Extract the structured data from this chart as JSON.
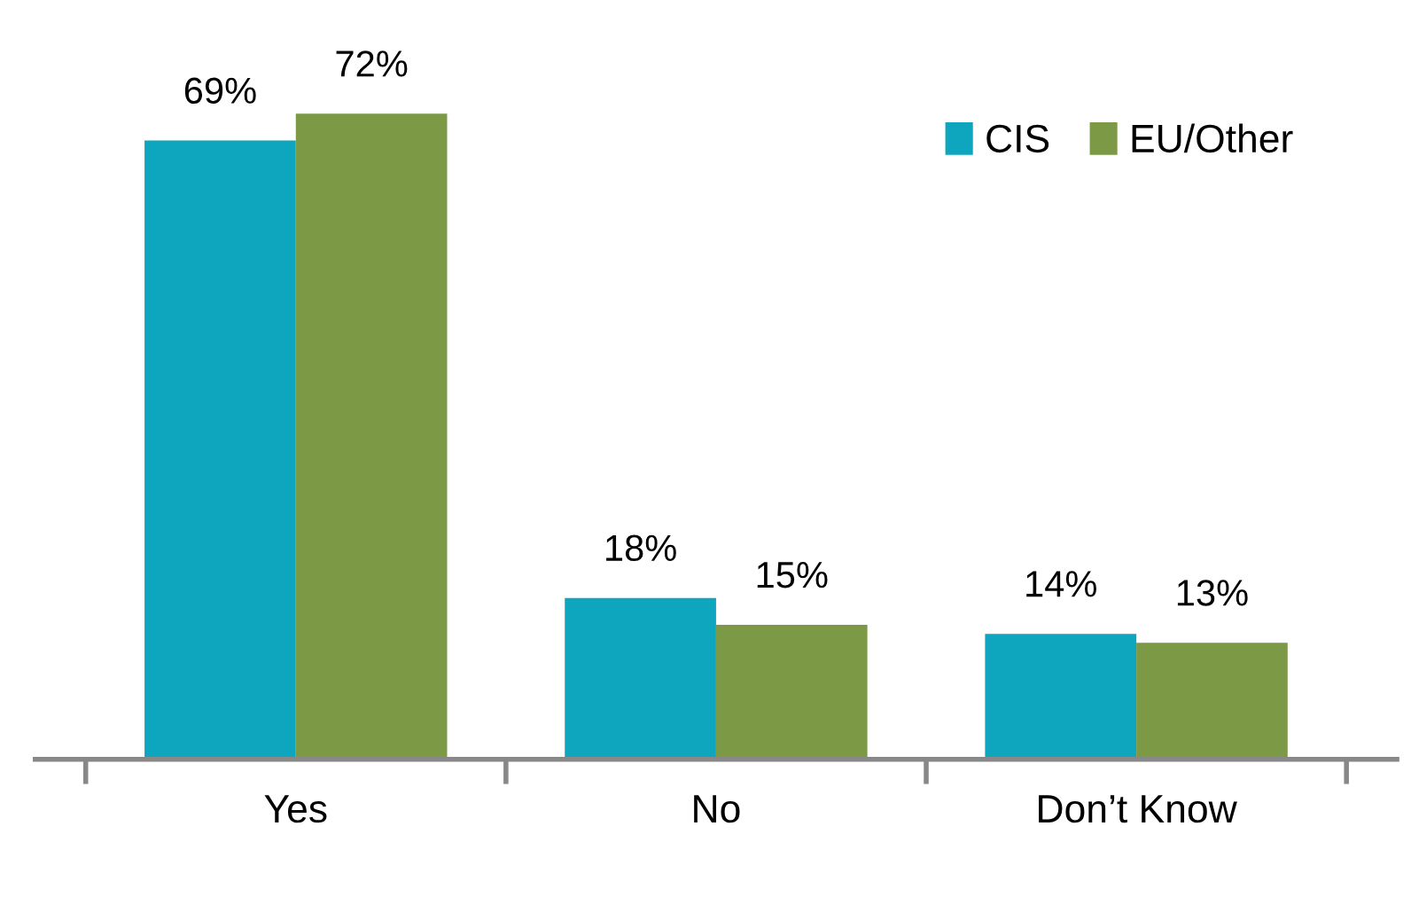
{
  "chart_data": {
    "type": "bar",
    "categories": [
      "Yes",
      "No",
      "Don’t Know"
    ],
    "series": [
      {
        "name": "CIS",
        "color": "#0ea5bf",
        "values": [
          69,
          18,
          14
        ],
        "value_labels": [
          "69%",
          "18%",
          "14%"
        ]
      },
      {
        "name": "EU/Other",
        "color": "#7c9a46",
        "values": [
          72,
          15,
          13
        ],
        "value_labels": [
          "72%",
          "15%",
          "13%"
        ]
      }
    ],
    "legend": "top right",
    "grid": false
  }
}
